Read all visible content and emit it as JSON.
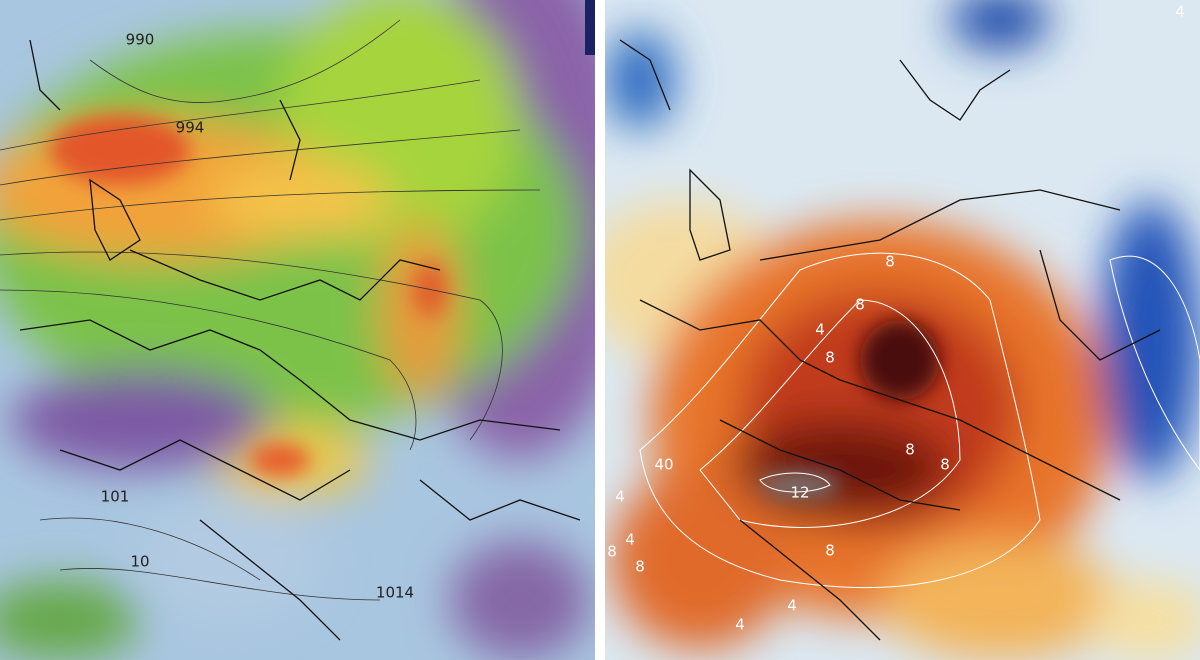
{
  "left_panel": {
    "isobar_labels": [
      "990",
      "994",
      "101",
      "10",
      "1014"
    ]
  },
  "right_panel": {
    "contour_labels": [
      "4",
      "8",
      "8",
      "4",
      "8",
      "8",
      "8",
      "40",
      "4",
      "12",
      "8",
      "8",
      "8",
      "4",
      "4",
      "4"
    ]
  }
}
